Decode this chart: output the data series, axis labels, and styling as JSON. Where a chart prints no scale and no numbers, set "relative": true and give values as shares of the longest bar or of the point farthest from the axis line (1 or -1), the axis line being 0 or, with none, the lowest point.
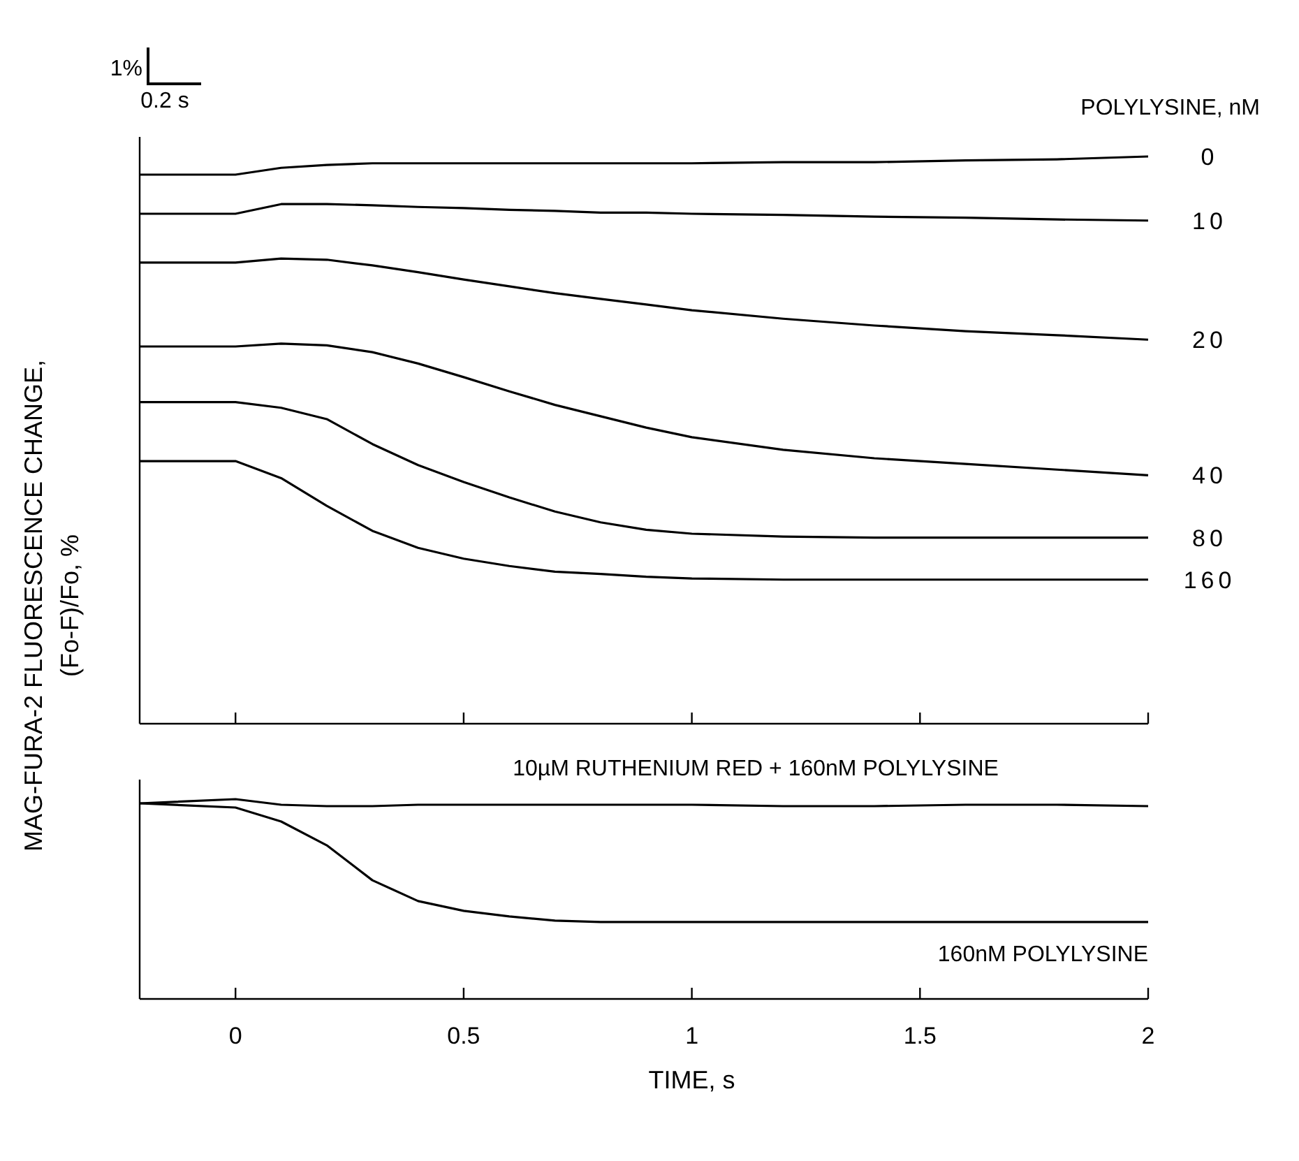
{
  "chart_data": [
    {
      "type": "line",
      "relative": true,
      "legend_title": "POLYLYSINE, nM",
      "ylabel": "MAG-FURA-2 FLUORESCENCE CHANGE,\n(Fo-F)/Fo,     %",
      "annotations": [
        "1%",
        "0.2 s"
      ],
      "tick_labels": false,
      "xlim": [
        -0.21,
        2
      ],
      "xticks": [
        0,
        0.5,
        1,
        1.5,
        2
      ],
      "x": [
        -0.21,
        0,
        0.1,
        0.2,
        0.3,
        0.4,
        0.5,
        0.6,
        0.7,
        0.8,
        0.9,
        1.0,
        1.2,
        1.4,
        1.6,
        1.8,
        2.0
      ],
      "series": [
        {
          "name": "0",
          "color": "#000000",
          "values": [
            0.968,
            0.968,
            0.98,
            0.985,
            0.988,
            0.988,
            0.988,
            0.988,
            0.988,
            0.988,
            0.988,
            0.988,
            0.99,
            0.99,
            0.993,
            0.995,
            1
          ]
        },
        {
          "name": "10",
          "color": "#000000",
          "values": [
            0.899,
            0.899,
            0.916,
            0.916,
            0.914,
            0.911,
            0.909,
            0.906,
            0.904,
            0.901,
            0.901,
            0.899,
            0.897,
            0.894,
            0.892,
            0.889,
            0.887
          ]
        },
        {
          "name": "20",
          "color": "#000000",
          "values": [
            0.813,
            0.813,
            0.82,
            0.818,
            0.808,
            0.796,
            0.783,
            0.771,
            0.759,
            0.749,
            0.739,
            0.729,
            0.714,
            0.702,
            0.692,
            0.685,
            0.677
          ]
        },
        {
          "name": "40",
          "color": "#000000",
          "values": [
            0.665,
            0.665,
            0.67,
            0.667,
            0.655,
            0.635,
            0.611,
            0.586,
            0.562,
            0.542,
            0.522,
            0.505,
            0.483,
            0.468,
            0.458,
            0.448,
            0.438
          ]
        },
        {
          "name": "80",
          "color": "#000000",
          "values": [
            0.567,
            0.567,
            0.557,
            0.537,
            0.493,
            0.456,
            0.426,
            0.399,
            0.374,
            0.355,
            0.342,
            0.335,
            0.33,
            0.328,
            0.328,
            0.328,
            0.328
          ]
        },
        {
          "name": "160",
          "color": "#000000",
          "values": [
            0.463,
            0.463,
            0.433,
            0.384,
            0.34,
            0.31,
            0.291,
            0.278,
            0.268,
            0.264,
            0.259,
            0.256,
            0.254,
            0.254,
            0.254,
            0.254,
            0.254
          ]
        }
      ]
    },
    {
      "type": "line",
      "relative": true,
      "xlabel": "TIME, s",
      "tick_labels": "x",
      "xlim": [
        -0.21,
        2
      ],
      "xticks": [
        0,
        0.5,
        1,
        1.5,
        2
      ],
      "x": [
        -0.21,
        0,
        0.1,
        0.2,
        0.3,
        0.4,
        0.5,
        0.6,
        0.7,
        0.8,
        0.9,
        1.0,
        1.2,
        1.4,
        1.6,
        1.8,
        2.0
      ],
      "series": [
        {
          "name": "10µM RUTHENIUM RED + 160nM POLYLYSINE",
          "color": "#000000",
          "values": [
            0.979,
            1.0,
            0.972,
            0.965,
            0.965,
            0.972,
            0.972,
            0.972,
            0.972,
            0.972,
            0.972,
            0.972,
            0.965,
            0.965,
            0.972,
            0.972,
            0.965
          ]
        },
        {
          "name": "160nM POLYLYSINE",
          "color": "#000000",
          "values": [
            0.979,
            0.958,
            0.888,
            0.769,
            0.594,
            0.49,
            0.441,
            0.413,
            0.392,
            0.385,
            0.385,
            0.385,
            0.385,
            0.385,
            0.385,
            0.385,
            0.385
          ]
        }
      ]
    }
  ]
}
